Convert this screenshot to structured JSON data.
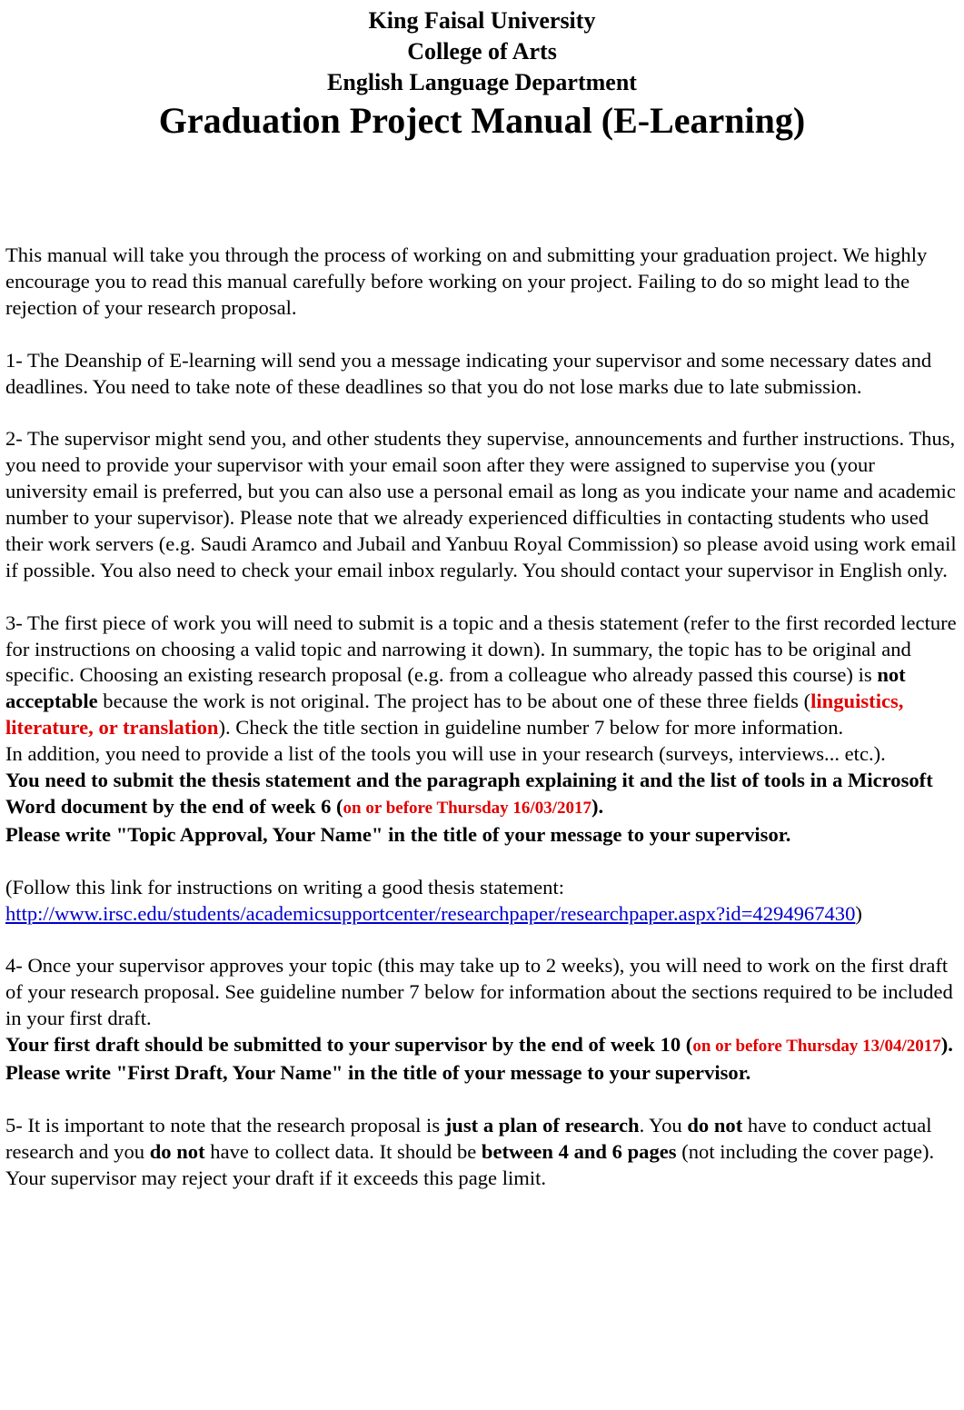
{
  "header": {
    "university": "King Faisal University",
    "college": "College of Arts",
    "department": "English Language Department",
    "title": "Graduation Project Manual (E-Learning)"
  },
  "intro": "This manual will take you through the process of working on and submitting your graduation project. We highly encourage you to read this manual carefully before working on your project. Failing to do so might lead to the rejection of your research proposal.",
  "item1": "1- The Deanship of E-learning will send you a message indicating your supervisor and some necessary dates and deadlines. You need to take note of these deadlines so that you do not lose marks due to late submission.",
  "item2": "2- The supervisor might send you, and other students they supervise, announcements and further instructions. Thus, you need to provide your supervisor with your email soon after they were assigned to supervise you (your university email is preferred, but you can also use a personal email as long as you indicate your name and academic number to your supervisor). Please note that we already experienced difficulties in contacting students who used their work servers (e.g. Saudi Aramco and Jubail and Yanbuu Royal Commission) so please avoid using work email if possible. You also need to check your email inbox regularly. You should contact your supervisor in English only.",
  "item3": {
    "part1": "3- The first piece of work you will need to submit is a topic and a thesis statement (refer to the first recorded lecture for instructions on choosing a valid topic and narrowing it down). In summary, the topic has to be original and specific. Choosing an existing research proposal (e.g. from a colleague who already passed this course) is ",
    "not_acceptable": "not acceptable",
    "part2": " because the work is not original. The project has to be about one of these three fields (",
    "fields": "linguistics, literature, or translation",
    "part3": "). Check the title section in guideline number 7 below for more information.",
    "tools": "In addition, you need to provide a list of the tools you will use in your research (surveys, interviews... etc.).",
    "submit_bold": "You need to submit the thesis statement and the paragraph explaining it and the list of tools in a Microsoft Word document by the end of week 6 (",
    "deadline": "on or before Thursday 16/03/2017",
    "submit_close": ").",
    "title_note": "Please write \"Topic Approval, Your Name\" in the title of your message to your supervisor."
  },
  "follow": {
    "text": "(Follow this link for instructions on writing a good thesis statement:",
    "link": "http://www.irsc.edu/students/academicsupportcenter/researchpaper/researchpaper.aspx?id=4294967430",
    "close": ")"
  },
  "item4": {
    "text": "4- Once your supervisor approves your topic (this may take up to 2 weeks), you will need to work on the first draft of your research proposal. See guideline number 7 below for information about the sections required to be included in your first draft.",
    "bold_start": "Your first draft should be submitted to your supervisor by the end of week 10 (",
    "deadline": "on or before Thursday 13/04/2017",
    "bold_end": "). Please write \"First Draft, Your Name\" in the title of your message to your supervisor."
  },
  "item5": {
    "p1": "5- It is important to note that the research proposal is ",
    "b1": "just a plan of research",
    "p2": ". You ",
    "b2": "do not",
    "p3": " have to conduct actual research and you ",
    "b3": "do not",
    "p4": " have to collect data. It should be ",
    "b4": "between 4 and 6 pages",
    "p5": " (not including the cover page). Your supervisor may reject your draft if it exceeds this page limit."
  }
}
